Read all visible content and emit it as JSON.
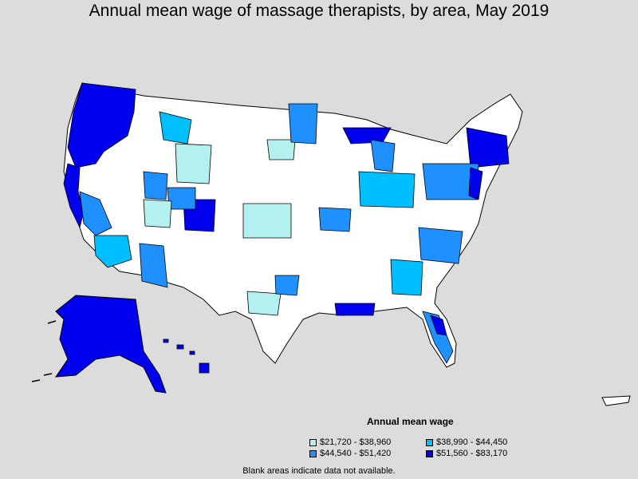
{
  "title": "Annual mean wage of massage therapists, by area, May 2019",
  "legend": {
    "title": "Annual mean wage",
    "items": [
      {
        "label": "$21,720 - $38,960",
        "color": "#b3f0f0"
      },
      {
        "label": "$38,990 - $44,450",
        "color": "#00bfff"
      },
      {
        "label": "$44,540 - $51,420",
        "color": "#1e90ff"
      },
      {
        "label": "$51,560 - $83,170",
        "color": "#0000ee"
      }
    ]
  },
  "footnote": "Blank areas indicate data not available.",
  "colors": {
    "background": "#dcdcdc",
    "land": "#ffffff",
    "border": "#000000"
  }
}
